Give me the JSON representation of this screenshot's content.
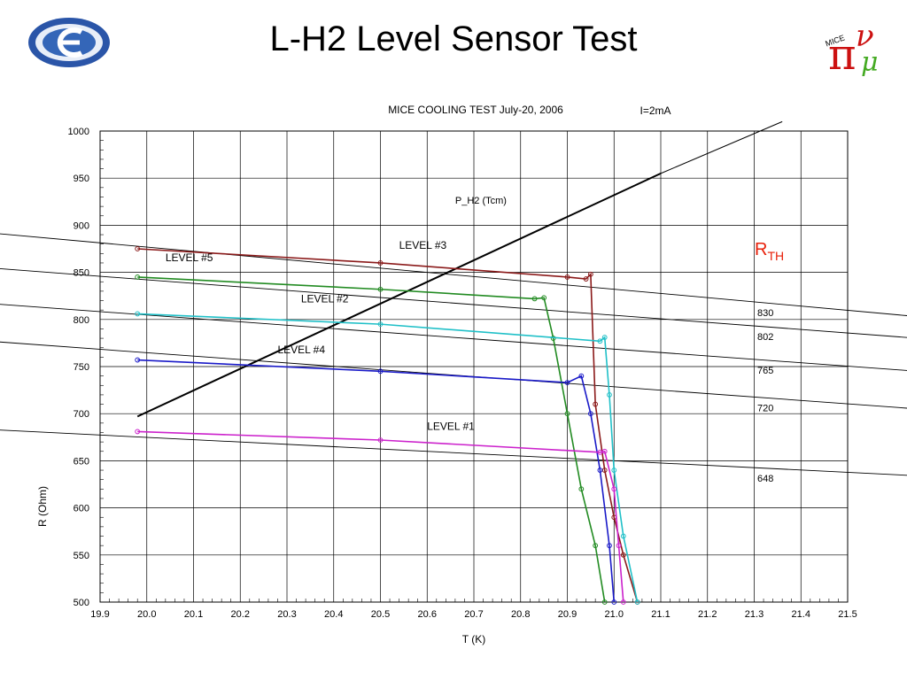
{
  "slide": {
    "title": "L-H2 Level Sensor Test"
  },
  "logos": {
    "left": "kek-logo",
    "right": "mice-logo",
    "right_text": "MICE"
  },
  "chart_data": {
    "type": "scatter",
    "title": "MICE COOLING TEST July-20, 2006",
    "subtitle": "I=2mA",
    "xlabel": "T (K)",
    "ylabel": "R (Ohm)",
    "xlim": [
      19.9,
      21.5
    ],
    "ylim": [
      500,
      1000
    ],
    "x_ticks": [
      "19.9",
      "20.0",
      "20.1",
      "20.2",
      "20.3",
      "20.4",
      "20.5",
      "20.6",
      "20.7",
      "20.8",
      "20.9",
      "21.0",
      "21.1",
      "21.2",
      "21.3",
      "21.4",
      "21.5"
    ],
    "y_ticks": [
      "500",
      "550",
      "600",
      "650",
      "700",
      "750",
      "800",
      "850",
      "900",
      "950",
      "1000"
    ],
    "grid": true,
    "rth_label": {
      "main": "R",
      "sub": "TH"
    },
    "reference_lines": [
      {
        "label": "830",
        "x": [
          19.55,
          21.65
        ],
        "y": [
          897,
          803
        ]
      },
      {
        "label": "802",
        "x": [
          19.55,
          21.65
        ],
        "y": [
          859,
          780
        ]
      },
      {
        "label": "765",
        "x": [
          19.55,
          21.65
        ],
        "y": [
          821,
          745
        ]
      },
      {
        "label": "720",
        "x": [
          19.55,
          21.65
        ],
        "y": [
          781,
          705
        ]
      },
      {
        "label": "648",
        "x": [
          19.55,
          21.65
        ],
        "y": [
          686,
          634
        ]
      }
    ],
    "p_h2_line": {
      "label": "P_H2 (Tcm)",
      "x": [
        19.98,
        21.1
      ],
      "y": [
        697,
        955
      ]
    },
    "p_h2_thin": {
      "x": [
        21.1,
        21.36
      ],
      "y": [
        955,
        1010
      ]
    },
    "series": [
      {
        "name": "LEVEL #3",
        "color": "#8b1a1a",
        "x": [
          19.98,
          20.5,
          20.9,
          20.94,
          20.95,
          20.96,
          20.98,
          21.0,
          21.02,
          21.05
        ],
        "y": [
          875,
          860,
          845,
          843,
          848,
          710,
          640,
          590,
          550,
          500
        ]
      },
      {
        "name": "LEVEL #5",
        "color": "#228b22",
        "x": [
          19.98,
          20.5,
          20.83,
          20.85,
          20.87,
          20.9,
          20.93,
          20.96,
          20.98
        ],
        "y": [
          845,
          832,
          822,
          823,
          780,
          700,
          620,
          560,
          500
        ]
      },
      {
        "name": "LEVEL #2",
        "color": "#20c0c8",
        "x": [
          19.98,
          20.5,
          20.97,
          20.98,
          20.99,
          21.0,
          21.02,
          21.05
        ],
        "y": [
          806,
          795,
          777,
          781,
          720,
          640,
          570,
          500
        ]
      },
      {
        "name": "LEVEL #4",
        "color": "#1a1ac8",
        "x": [
          19.98,
          20.5,
          20.9,
          20.93,
          20.95,
          20.97,
          20.99,
          21.0
        ],
        "y": [
          757,
          745,
          733,
          740,
          700,
          640,
          560,
          500
        ]
      },
      {
        "name": "LEVEL #1",
        "color": "#cc22cc",
        "x": [
          19.98,
          20.5,
          20.97,
          20.98,
          21.0,
          21.01,
          21.02
        ],
        "y": [
          681,
          672,
          659,
          660,
          620,
          560,
          500
        ]
      }
    ],
    "series_labels": [
      {
        "name": "LEVEL #3",
        "x": 20.54,
        "y": 875
      },
      {
        "name": "LEVEL #5",
        "x": 20.04,
        "y": 862
      },
      {
        "name": "LEVEL #2",
        "x": 20.33,
        "y": 818
      },
      {
        "name": "LEVEL #4",
        "x": 20.28,
        "y": 764
      },
      {
        "name": "LEVEL #1",
        "x": 20.6,
        "y": 683
      }
    ]
  }
}
